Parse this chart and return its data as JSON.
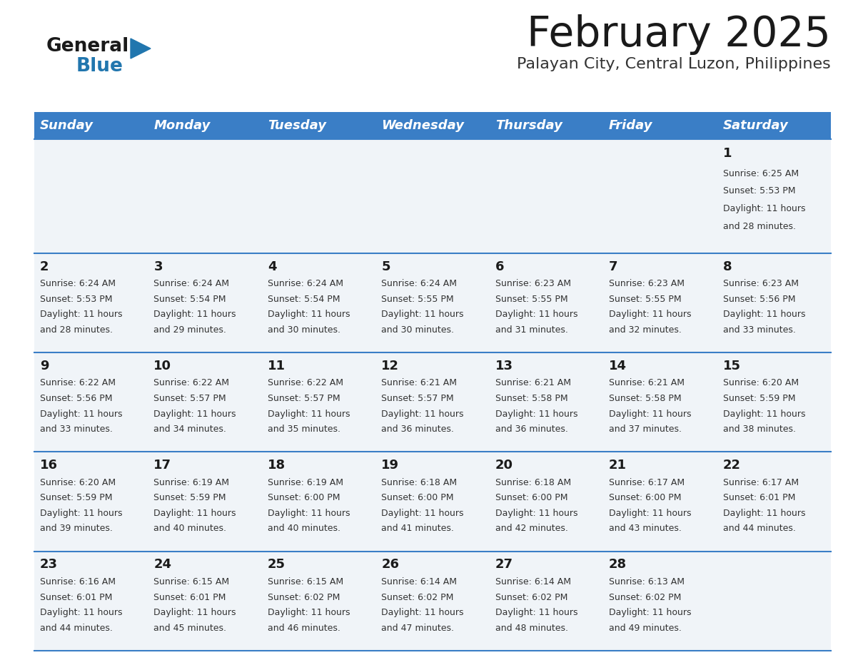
{
  "title": "February 2025",
  "subtitle": "Palayan City, Central Luzon, Philippines",
  "header_color": "#3A7EC6",
  "header_text_color": "#FFFFFF",
  "background_color": "#FFFFFF",
  "cell_bg": "#F0F4F8",
  "separator_color": "#3A7EC6",
  "days_of_week": [
    "Sunday",
    "Monday",
    "Tuesday",
    "Wednesday",
    "Thursday",
    "Friday",
    "Saturday"
  ],
  "title_color": "#1A1A1A",
  "subtitle_color": "#333333",
  "day_number_color": "#1A1A1A",
  "info_color": "#333333",
  "logo_general_color": "#1A1A1A",
  "logo_blue_color": "#2176AE",
  "calendar_data": [
    [
      null,
      null,
      null,
      null,
      null,
      null,
      {
        "day": 1,
        "sunrise": "6:25 AM",
        "sunset": "5:53 PM",
        "daylight": "11 hours and 28 minutes."
      }
    ],
    [
      {
        "day": 2,
        "sunrise": "6:24 AM",
        "sunset": "5:53 PM",
        "daylight": "11 hours and 28 minutes."
      },
      {
        "day": 3,
        "sunrise": "6:24 AM",
        "sunset": "5:54 PM",
        "daylight": "11 hours and 29 minutes."
      },
      {
        "day": 4,
        "sunrise": "6:24 AM",
        "sunset": "5:54 PM",
        "daylight": "11 hours and 30 minutes."
      },
      {
        "day": 5,
        "sunrise": "6:24 AM",
        "sunset": "5:55 PM",
        "daylight": "11 hours and 30 minutes."
      },
      {
        "day": 6,
        "sunrise": "6:23 AM",
        "sunset": "5:55 PM",
        "daylight": "11 hours and 31 minutes."
      },
      {
        "day": 7,
        "sunrise": "6:23 AM",
        "sunset": "5:55 PM",
        "daylight": "11 hours and 32 minutes."
      },
      {
        "day": 8,
        "sunrise": "6:23 AM",
        "sunset": "5:56 PM",
        "daylight": "11 hours and 33 minutes."
      }
    ],
    [
      {
        "day": 9,
        "sunrise": "6:22 AM",
        "sunset": "5:56 PM",
        "daylight": "11 hours and 33 minutes."
      },
      {
        "day": 10,
        "sunrise": "6:22 AM",
        "sunset": "5:57 PM",
        "daylight": "11 hours and 34 minutes."
      },
      {
        "day": 11,
        "sunrise": "6:22 AM",
        "sunset": "5:57 PM",
        "daylight": "11 hours and 35 minutes."
      },
      {
        "day": 12,
        "sunrise": "6:21 AM",
        "sunset": "5:57 PM",
        "daylight": "11 hours and 36 minutes."
      },
      {
        "day": 13,
        "sunrise": "6:21 AM",
        "sunset": "5:58 PM",
        "daylight": "11 hours and 36 minutes."
      },
      {
        "day": 14,
        "sunrise": "6:21 AM",
        "sunset": "5:58 PM",
        "daylight": "11 hours and 37 minutes."
      },
      {
        "day": 15,
        "sunrise": "6:20 AM",
        "sunset": "5:59 PM",
        "daylight": "11 hours and 38 minutes."
      }
    ],
    [
      {
        "day": 16,
        "sunrise": "6:20 AM",
        "sunset": "5:59 PM",
        "daylight": "11 hours and 39 minutes."
      },
      {
        "day": 17,
        "sunrise": "6:19 AM",
        "sunset": "5:59 PM",
        "daylight": "11 hours and 40 minutes."
      },
      {
        "day": 18,
        "sunrise": "6:19 AM",
        "sunset": "6:00 PM",
        "daylight": "11 hours and 40 minutes."
      },
      {
        "day": 19,
        "sunrise": "6:18 AM",
        "sunset": "6:00 PM",
        "daylight": "11 hours and 41 minutes."
      },
      {
        "day": 20,
        "sunrise": "6:18 AM",
        "sunset": "6:00 PM",
        "daylight": "11 hours and 42 minutes."
      },
      {
        "day": 21,
        "sunrise": "6:17 AM",
        "sunset": "6:00 PM",
        "daylight": "11 hours and 43 minutes."
      },
      {
        "day": 22,
        "sunrise": "6:17 AM",
        "sunset": "6:01 PM",
        "daylight": "11 hours and 44 minutes."
      }
    ],
    [
      {
        "day": 23,
        "sunrise": "6:16 AM",
        "sunset": "6:01 PM",
        "daylight": "11 hours and 44 minutes."
      },
      {
        "day": 24,
        "sunrise": "6:15 AM",
        "sunset": "6:01 PM",
        "daylight": "11 hours and 45 minutes."
      },
      {
        "day": 25,
        "sunrise": "6:15 AM",
        "sunset": "6:02 PM",
        "daylight": "11 hours and 46 minutes."
      },
      {
        "day": 26,
        "sunrise": "6:14 AM",
        "sunset": "6:02 PM",
        "daylight": "11 hours and 47 minutes."
      },
      {
        "day": 27,
        "sunrise": "6:14 AM",
        "sunset": "6:02 PM",
        "daylight": "11 hours and 48 minutes."
      },
      {
        "day": 28,
        "sunrise": "6:13 AM",
        "sunset": "6:02 PM",
        "daylight": "11 hours and 49 minutes."
      },
      null
    ]
  ]
}
